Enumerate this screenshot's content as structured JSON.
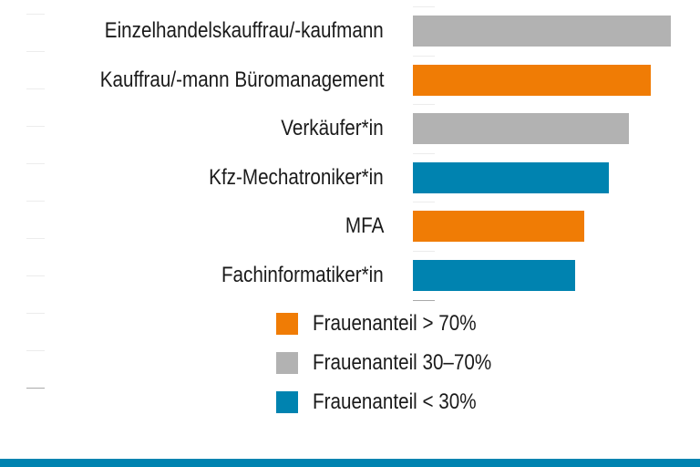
{
  "chart_data": {
    "type": "bar",
    "orientation": "horizontal",
    "categories": [
      "Einzelhandelskauffrau/-kaufmann",
      "Kauffrau/-mann Büromanagement",
      "Verkäufer*in",
      "Kfz-Mechatroniker*in",
      "MFA",
      "Fachinformatiker*in"
    ],
    "values_relative": [
      100,
      92.2,
      83.7,
      76.0,
      66.4,
      62.9
    ],
    "groups": [
      "mid",
      "high",
      "mid",
      "low",
      "high",
      "low"
    ],
    "legend": [
      {
        "key": "high",
        "label": "Frauenanteil > 70%",
        "color": "#f07c05"
      },
      {
        "key": "mid",
        "label": "Frauenanteil 30–70%",
        "color": "#b2b2b2"
      },
      {
        "key": "low",
        "label": "Frauenanteil < 30%",
        "color": "#0083b0"
      }
    ],
    "legend_placement": "bottom",
    "grid": false,
    "title": "",
    "xlabel": "",
    "ylabel": ""
  },
  "colors": {
    "footer": "#0083b0"
  }
}
